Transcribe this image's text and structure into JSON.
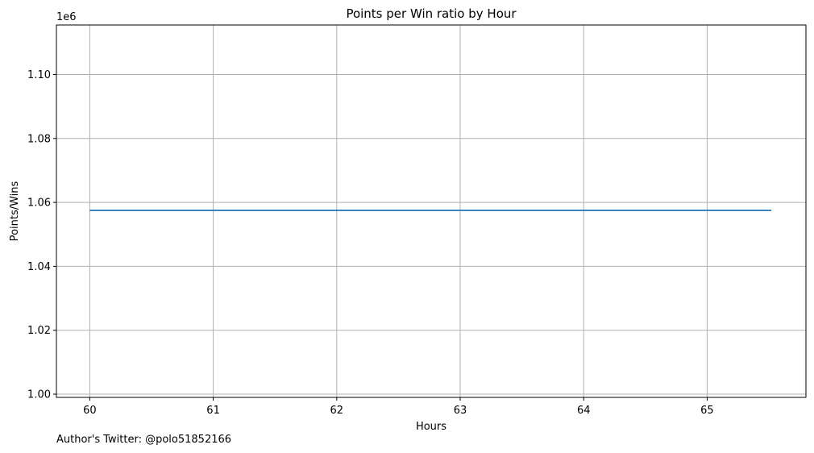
{
  "chart_data": {
    "type": "line",
    "title": "Points per Win ratio by Hour",
    "xlabel": "Hours",
    "ylabel": "Points/Wins",
    "offset_label": "1e6",
    "xlim": [
      59.73,
      65.8
    ],
    "ylim": [
      0.999,
      1.1155
    ],
    "x_ticks": [
      60,
      61,
      62,
      63,
      64,
      65
    ],
    "x_tick_labels": [
      "60",
      "61",
      "62",
      "63",
      "64",
      "65"
    ],
    "y_ticks": [
      1.0,
      1.02,
      1.04,
      1.06,
      1.08,
      1.1
    ],
    "y_tick_labels": [
      "1.00",
      "1.02",
      "1.04",
      "1.06",
      "1.08",
      "1.10"
    ],
    "grid": true,
    "series": [
      {
        "color": "#1f77b4",
        "x": [
          60,
          65.52
        ],
        "y": [
          1.0575,
          1.0575
        ]
      }
    ]
  },
  "footnote": "Author's Twitter: @polo51852166"
}
